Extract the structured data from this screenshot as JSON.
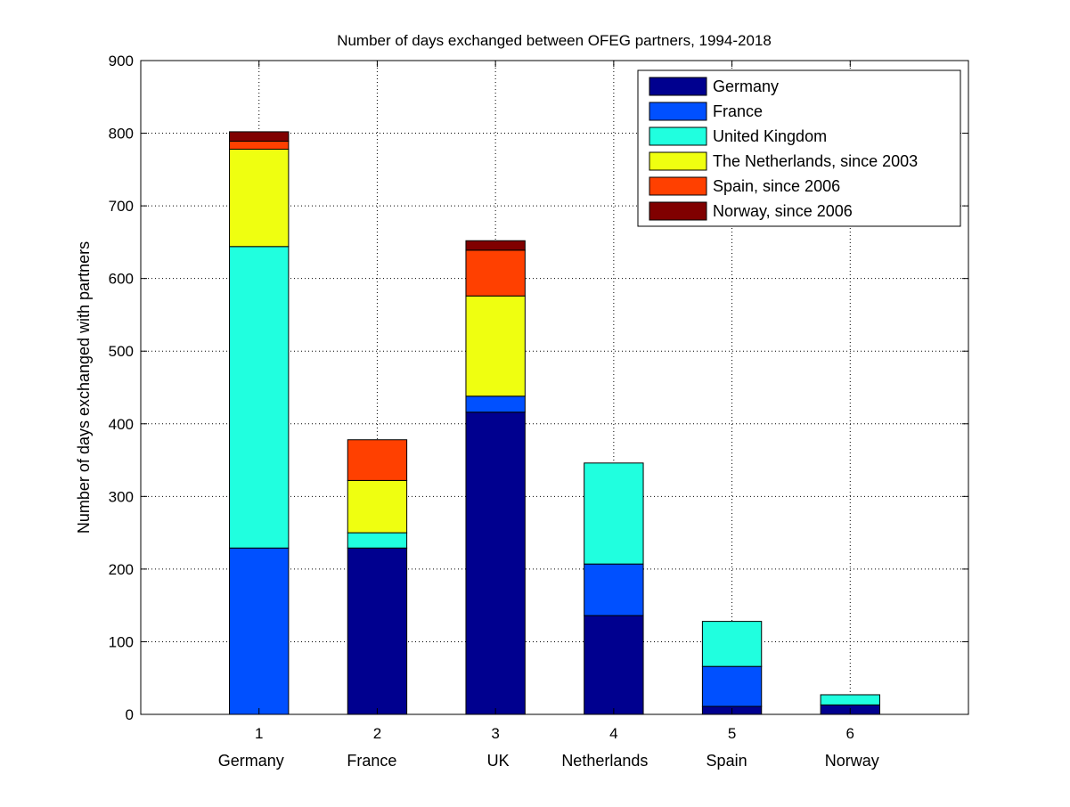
{
  "chart_data": {
    "type": "bar",
    "stacked": true,
    "title": "Number of days exchanged between OFEG partners, 1994-2018",
    "xlabel": "",
    "ylabel": "Number of days exchanged with partners",
    "x": [
      1,
      2,
      3,
      4,
      5,
      6
    ],
    "x_tick_labels": [
      "1",
      "2",
      "3",
      "4",
      "5",
      "6"
    ],
    "categories": [
      "Germany",
      "France",
      "UK",
      "Netherlands",
      "Spain",
      "Norway"
    ],
    "xlim": [
      0,
      7
    ],
    "ylim": [
      0,
      900
    ],
    "yticks": [
      0,
      100,
      200,
      300,
      400,
      500,
      600,
      700,
      800,
      900
    ],
    "grid": true,
    "legend_position": "top-right",
    "series": [
      {
        "name": "Germany",
        "color": "#00008F",
        "values": [
          0,
          229,
          416,
          136,
          11,
          13
        ]
      },
      {
        "name": "France",
        "color": "#0050FF",
        "values": [
          229,
          0,
          22,
          71,
          55,
          0
        ]
      },
      {
        "name": "United Kingdom",
        "color": "#20FFDF",
        "values": [
          415,
          21,
          0,
          139,
          62,
          14
        ]
      },
      {
        "name": "The Netherlands, since 2003",
        "color": "#EFFF10",
        "values": [
          134,
          72,
          138,
          0,
          0,
          0
        ]
      },
      {
        "name": "Spain, since 2006",
        "color": "#FF4000",
        "values": [
          11,
          56,
          63,
          0,
          0,
          0
        ]
      },
      {
        "name": "Norway, since 2006",
        "color": "#800000",
        "values": [
          13,
          0,
          13,
          0,
          0,
          0
        ]
      }
    ]
  }
}
